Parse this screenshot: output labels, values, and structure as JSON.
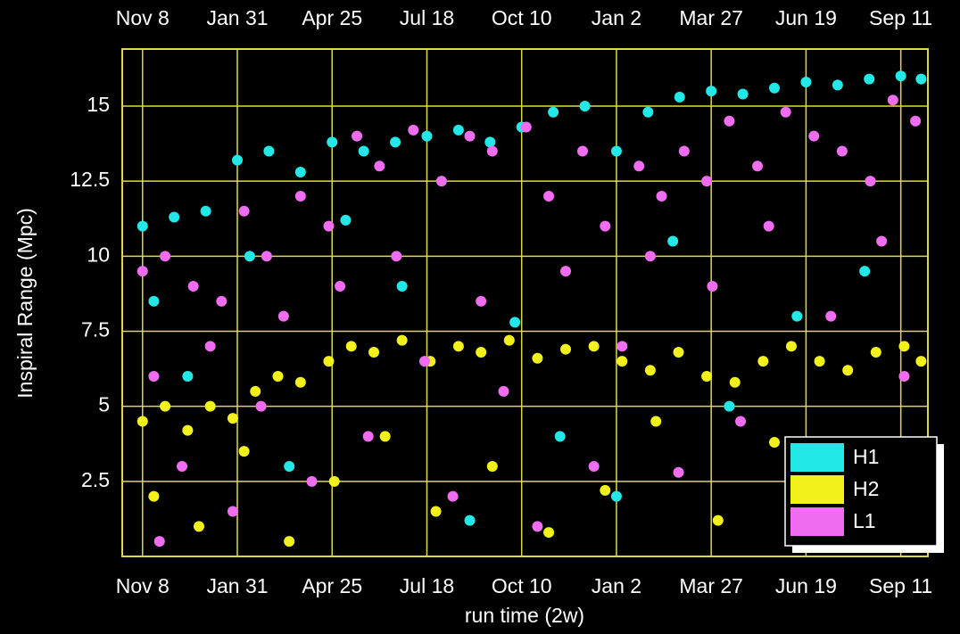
{
  "chart_data": {
    "type": "scatter",
    "y_label": "Inspiral Range (Mpc)",
    "x_label": "run time (2w)",
    "xlim": [
      -18,
      696
    ],
    "xticks": [
      {
        "value": 0,
        "label": "Nov 8"
      },
      {
        "value": 84,
        "label": "Jan 31"
      },
      {
        "value": 168,
        "label": "Apr 25"
      },
      {
        "value": 252,
        "label": "Jul 18"
      },
      {
        "value": 336,
        "label": "Oct 10"
      },
      {
        "value": 420,
        "label": "Jan 2"
      },
      {
        "value": 504,
        "label": "Mar 27"
      },
      {
        "value": 588,
        "label": "Jun 19"
      },
      {
        "value": 672,
        "label": "Sep 11"
      }
    ],
    "ylim": [
      0,
      16.9
    ],
    "yticks": [
      2.5,
      5,
      7.5,
      10,
      12.5,
      15
    ],
    "grid": true,
    "grid_color": "#e0d84a",
    "legend": "lower right",
    "series": [
      {
        "name": "H1",
        "color": "#22e8e8",
        "x": [
          0,
          28,
          56,
          84,
          112,
          140,
          168,
          196,
          224,
          252,
          280,
          308,
          336,
          364,
          392,
          420,
          448,
          476,
          504,
          532,
          560,
          588,
          616,
          644,
          672,
          690,
          10,
          40,
          95,
          130,
          180,
          230,
          290,
          330,
          370,
          420,
          470,
          520,
          580,
          640,
          680
        ],
        "values": [
          11,
          11.3,
          11.5,
          13.2,
          13.5,
          12.8,
          13.8,
          13.5,
          13.8,
          14,
          14.2,
          13.8,
          14.3,
          14.8,
          15,
          13.5,
          14.8,
          15.3,
          15.5,
          15.4,
          15.6,
          15.8,
          15.7,
          15.9,
          16,
          15.9,
          8.5,
          6,
          10,
          3,
          11.2,
          9,
          1.2,
          7.8,
          4,
          2,
          10.5,
          5,
          8,
          9.5,
          3.5
        ]
      },
      {
        "name": "H2",
        "color": "#f2f21a",
        "x": [
          0,
          20,
          40,
          60,
          80,
          100,
          120,
          140,
          165,
          185,
          205,
          230,
          255,
          280,
          300,
          325,
          350,
          375,
          400,
          425,
          450,
          475,
          500,
          525,
          550,
          575,
          600,
          625,
          650,
          675,
          690,
          10,
          50,
          90,
          130,
          170,
          215,
          260,
          310,
          360,
          410,
          455,
          510,
          560,
          615,
          660
        ],
        "values": [
          4.5,
          5,
          4.2,
          5,
          4.6,
          5.5,
          6,
          5.8,
          6.5,
          7,
          6.8,
          7.2,
          6.5,
          7,
          6.8,
          7.2,
          6.6,
          6.9,
          7,
          6.5,
          6.2,
          6.8,
          6,
          5.8,
          6.5,
          7,
          6.5,
          6.2,
          6.8,
          7,
          6.5,
          2,
          1,
          3.5,
          0.5,
          2.5,
          4,
          1.5,
          3,
          0.8,
          2.2,
          4.5,
          1.2,
          3.8,
          0.6,
          2.8
        ]
      },
      {
        "name": "L1",
        "color": "#f06cf0",
        "x": [
          0,
          20,
          45,
          70,
          90,
          110,
          140,
          165,
          190,
          210,
          240,
          265,
          290,
          310,
          340,
          360,
          390,
          410,
          440,
          460,
          480,
          500,
          520,
          545,
          570,
          595,
          620,
          645,
          665,
          685,
          10,
          35,
          60,
          80,
          105,
          125,
          150,
          175,
          200,
          225,
          250,
          275,
          300,
          320,
          350,
          375,
          400,
          425,
          450,
          475,
          505,
          530,
          555,
          585,
          610,
          630,
          655,
          675,
          690,
          15
        ],
        "values": [
          9.5,
          10,
          9,
          8.5,
          11.5,
          10,
          12,
          11,
          14,
          13,
          14.2,
          12.5,
          14,
          13.5,
          14.3,
          12,
          13.5,
          11,
          13,
          12,
          13.5,
          12.5,
          14.5,
          13,
          14.8,
          14,
          13.5,
          12.5,
          15.2,
          14.5,
          6,
          3,
          7,
          1.5,
          5,
          8,
          2.5,
          9,
          4,
          10,
          6.5,
          2,
          8.5,
          5.5,
          1,
          9.5,
          3,
          7,
          10,
          2.8,
          9,
          4.5,
          11,
          1.8,
          8,
          3.5,
          10.5,
          6,
          1.2,
          0.5
        ]
      }
    ]
  }
}
